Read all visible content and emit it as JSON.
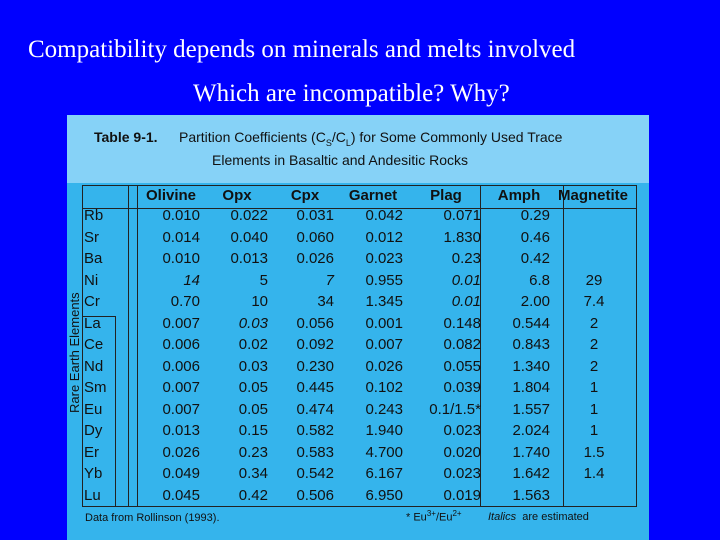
{
  "slide": {
    "title": "Compatibility depends on minerals and melts involved",
    "subtitle": "Which are incompatible? Why?"
  },
  "table": {
    "label": "Table 9-1.",
    "caption_pre": "Partition Coefficients (C",
    "caption_s": "S",
    "caption_mid": "/C",
    "caption_l": "L",
    "caption_post": ") for Some Commonly Used Trace",
    "caption_line2": "Elements in Basaltic and Andesitic Rocks",
    "ree_label": "Rare Earth Elements",
    "columns": [
      "Olivine",
      "Opx",
      "Cpx",
      "Garnet",
      "Plag",
      "Amph",
      "Magnetite"
    ],
    "rows": [
      {
        "element": "Rb",
        "values": [
          "0.010",
          "0.022",
          "0.031",
          "0.042",
          "0.071",
          "0.29",
          ""
        ]
      },
      {
        "element": "Sr",
        "values": [
          "0.014",
          "0.040",
          "0.060",
          "0.012",
          "1.830",
          "0.46",
          ""
        ]
      },
      {
        "element": "Ba",
        "values": [
          "0.010",
          "0.013",
          "0.026",
          "0.023",
          "0.23",
          "0.42",
          ""
        ]
      },
      {
        "element": "Ni",
        "values": [
          "14",
          "5",
          "7",
          "0.955",
          "0.01",
          "6.8",
          "29"
        ]
      },
      {
        "element": "Cr",
        "values": [
          "0.70",
          "10",
          "34",
          "1.345",
          "0.01",
          "2.00",
          "7.4"
        ]
      },
      {
        "element": "La",
        "values": [
          "0.007",
          "0.03",
          "0.056",
          "0.001",
          "0.148",
          "0.544",
          "2"
        ]
      },
      {
        "element": "Ce",
        "values": [
          "0.006",
          "0.02",
          "0.092",
          "0.007",
          "0.082",
          "0.843",
          "2"
        ]
      },
      {
        "element": "Nd",
        "values": [
          "0.006",
          "0.03",
          "0.230",
          "0.026",
          "0.055",
          "1.340",
          "2"
        ]
      },
      {
        "element": "Sm",
        "values": [
          "0.007",
          "0.05",
          "0.445",
          "0.102",
          "0.039",
          "1.804",
          "1"
        ]
      },
      {
        "element": "Eu",
        "values": [
          "0.007",
          "0.05",
          "0.474",
          "0.243",
          "0.1/1.5*",
          "1.557",
          "1"
        ]
      },
      {
        "element": "Dy",
        "values": [
          "0.013",
          "0.15",
          "0.582",
          "1.940",
          "0.023",
          "2.024",
          "1"
        ]
      },
      {
        "element": "Er",
        "values": [
          "0.026",
          "0.23",
          "0.583",
          "4.700",
          "0.020",
          "1.740",
          "1.5"
        ]
      },
      {
        "element": "Yb",
        "values": [
          "0.049",
          "0.34",
          "0.542",
          "6.167",
          "0.023",
          "1.642",
          "1.4"
        ]
      },
      {
        "element": "Lu",
        "values": [
          "0.045",
          "0.42",
          "0.506",
          "6.950",
          "0.019",
          "1.563",
          ""
        ]
      }
    ],
    "estimated": [
      "3-0",
      "3-2",
      "4-4",
      "5-1",
      "3-4"
    ],
    "footer": {
      "source": "Data from Rollinson (1993).",
      "star": "*",
      "eu": "Eu",
      "eu3": "3+",
      "slash": "/Eu",
      "eu2": "2+",
      "italics_word": "Italics",
      "italics_rest": "are estimated"
    }
  }
}
